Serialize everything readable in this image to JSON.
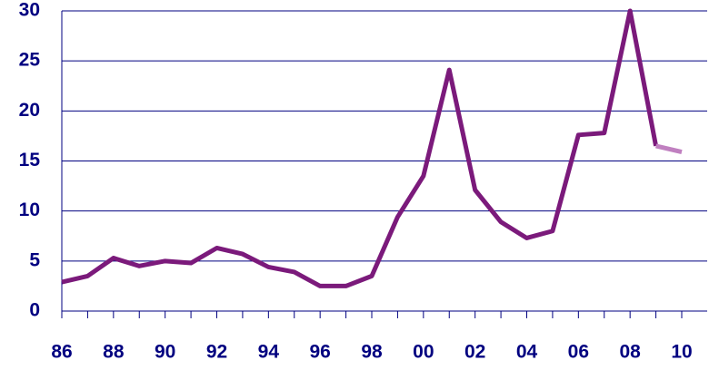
{
  "chart_data": {
    "type": "line",
    "categories": [
      "86",
      null,
      "88",
      null,
      "90",
      null,
      "92",
      null,
      "94",
      null,
      "96",
      null,
      "98",
      null,
      "00",
      null,
      "02",
      null,
      "04",
      null,
      "06",
      null,
      "08",
      null,
      "10"
    ],
    "series": [
      {
        "color": "#7b1a7b",
        "values": [
          2.9,
          3.5,
          5.3,
          4.5,
          5.0,
          4.8,
          6.3,
          5.7,
          4.4,
          3.9,
          2.5,
          2.5,
          3.5,
          9.4,
          13.5,
          24.1,
          12.1,
          8.9,
          7.3,
          8.0,
          17.6,
          17.8,
          30,
          16.5,
          null
        ]
      },
      {
        "color": "#c080c0",
        "values": [
          null,
          null,
          null,
          null,
          null,
          null,
          null,
          null,
          null,
          null,
          null,
          null,
          null,
          null,
          null,
          null,
          null,
          null,
          null,
          null,
          null,
          null,
          null,
          16.5,
          15.9
        ]
      }
    ],
    "ylim": [
      0,
      30
    ],
    "yticks": [
      0,
      5,
      10,
      15,
      20,
      25,
      30
    ],
    "grid": true
  }
}
